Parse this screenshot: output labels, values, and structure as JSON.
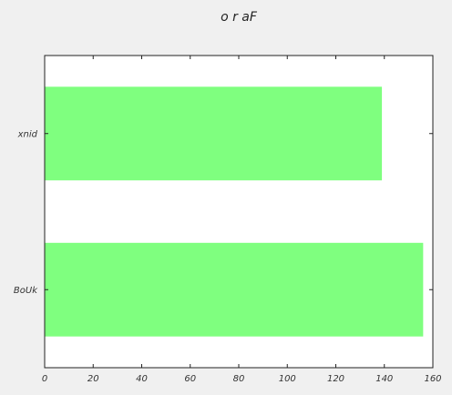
{
  "chart_data": {
    "type": "bar",
    "orientation": "horizontal",
    "title": "o r aF",
    "categories": [
      "xnid",
      "BoUk"
    ],
    "values": [
      139,
      156
    ],
    "xlim": [
      0,
      160
    ],
    "xticks": [
      0,
      20,
      40,
      60,
      80,
      100,
      120,
      140,
      160
    ],
    "xlabel": "",
    "ylabel": "",
    "grid": false,
    "legend": "none",
    "bar_color": "#7fff7f",
    "background_color": "#ffffff"
  }
}
